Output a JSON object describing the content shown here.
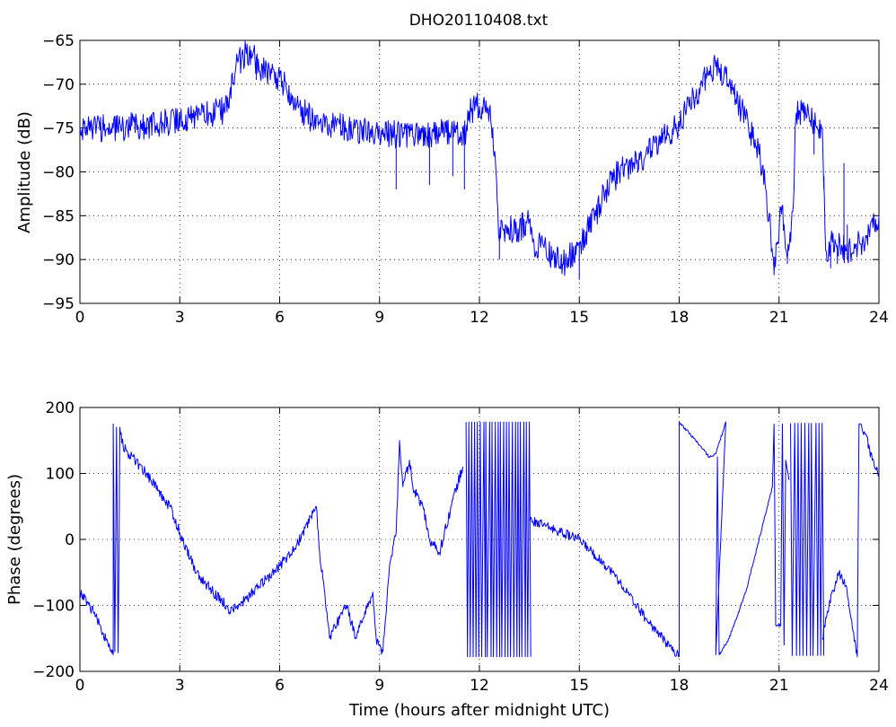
{
  "title": "DHO20110408.txt",
  "colors": {
    "trace": "#0000ff",
    "axes": "#000000",
    "background": "#ffffff"
  },
  "chart_data": [
    {
      "type": "line",
      "xlabel": "",
      "ylabel": "Amplitude (dB)",
      "xlim": [
        0,
        24
      ],
      "ylim": [
        -95,
        -65
      ],
      "xticks": [
        0,
        3,
        6,
        9,
        12,
        15,
        18,
        21,
        24
      ],
      "xtick_labels": [
        "0",
        "3",
        "6",
        "9",
        "12",
        "15",
        "18",
        "21",
        "24"
      ],
      "yticks": [
        -65,
        -70,
        -75,
        -80,
        -85,
        -90,
        -95
      ],
      "ytick_labels": [
        "−65",
        "−70",
        "−75",
        "−80",
        "−85",
        "−90",
        "−95"
      ],
      "grid": true,
      "series": [
        {
          "noise": 1.6,
          "points": [
            [
              0,
              -75
            ],
            [
              1,
              -75
            ],
            [
              2.5,
              -74.5
            ],
            [
              3.6,
              -73.5
            ],
            [
              4.3,
              -73
            ],
            [
              4.5,
              -71
            ],
            [
              4.75,
              -67.5
            ],
            [
              5.0,
              -66.5
            ],
            [
              5.2,
              -66.5
            ],
            [
              5.4,
              -68.5
            ],
            [
              5.7,
              -68.5
            ],
            [
              6.0,
              -69.2
            ],
            [
              6.4,
              -71.5
            ],
            [
              6.8,
              -73.5
            ],
            [
              7.2,
              -74.5
            ],
            [
              8.0,
              -75
            ],
            [
              9.0,
              -75.5
            ],
            [
              10.0,
              -76
            ],
            [
              11.0,
              -75.5
            ],
            [
              11.6,
              -75.5
            ],
            [
              11.65,
              -73
            ],
            [
              12.0,
              -72.5
            ],
            [
              12.3,
              -73
            ],
            [
              12.4,
              -75
            ],
            [
              12.5,
              -80
            ],
            [
              12.55,
              -84
            ],
            [
              12.6,
              -88
            ],
            [
              12.65,
              -85.5
            ],
            [
              12.7,
              -86.5
            ],
            [
              13.2,
              -86.5
            ],
            [
              13.5,
              -85.5
            ],
            [
              13.6,
              -88
            ],
            [
              14.0,
              -89
            ],
            [
              14.5,
              -90.5
            ],
            [
              15.0,
              -88.5
            ],
            [
              15.5,
              -85
            ],
            [
              15.8,
              -82
            ],
            [
              16.2,
              -80
            ],
            [
              17.0,
              -78
            ],
            [
              18.0,
              -74.5
            ],
            [
              18.3,
              -72.5
            ],
            [
              18.6,
              -70.5
            ],
            [
              18.9,
              -68.5
            ],
            [
              19.1,
              -68
            ],
            [
              19.5,
              -70
            ],
            [
              20.0,
              -74
            ],
            [
              20.4,
              -78
            ],
            [
              20.6,
              -82
            ],
            [
              20.75,
              -87
            ],
            [
              20.85,
              -91.5
            ],
            [
              20.95,
              -88
            ],
            [
              21.05,
              -84
            ],
            [
              21.15,
              -86
            ],
            [
              21.25,
              -90
            ],
            [
              21.35,
              -88
            ],
            [
              21.45,
              -82
            ],
            [
              21.5,
              -74
            ],
            [
              21.6,
              -73
            ],
            [
              22.0,
              -74
            ],
            [
              22.3,
              -75
            ],
            [
              22.4,
              -89
            ],
            [
              22.6,
              -88
            ],
            [
              23.0,
              -89
            ],
            [
              23.5,
              -88
            ],
            [
              24.0,
              -85
            ]
          ],
          "spikes": [
            [
              5.3,
              -69.5
            ],
            [
              11.55,
              -82
            ],
            [
              12.6,
              -90
            ],
            [
              15.0,
              -92.3
            ],
            [
              20.85,
              -91.8
            ],
            [
              21.25,
              -90.5
            ],
            [
              21.45,
              -81.5
            ],
            [
              21.55,
              -72.5
            ],
            [
              22.05,
              -78
            ],
            [
              22.35,
              -80.5
            ],
            [
              22.55,
              -91
            ],
            [
              22.75,
              -90.5
            ],
            [
              22.95,
              -79
            ],
            [
              23.05,
              -90
            ],
            [
              23.05,
              -86
            ],
            [
              9.5,
              -82
            ],
            [
              10.5,
              -81.5
            ],
            [
              11.2,
              -80.5
            ]
          ]
        }
      ]
    },
    {
      "type": "line",
      "xlabel": "Time (hours after midnight UTC)",
      "ylabel": "Phase (degrees)",
      "xlim": [
        0,
        24
      ],
      "ylim": [
        -200,
        200
      ],
      "xticks": [
        0,
        3,
        6,
        9,
        12,
        15,
        18,
        21,
        24
      ],
      "xtick_labels": [
        "0",
        "3",
        "6",
        "9",
        "12",
        "15",
        "18",
        "21",
        "24"
      ],
      "yticks": [
        200,
        100,
        0,
        -100,
        -200
      ],
      "ytick_labels": [
        "200",
        "100",
        "0",
        "−100",
        "−200"
      ],
      "grid": true,
      "series": [
        {
          "noise": 8,
          "points": [
            [
              0,
              -80
            ],
            [
              0.3,
              -100
            ],
            [
              0.6,
              -130
            ],
            [
              0.9,
              -165
            ],
            [
              1.0,
              -175
            ],
            [
              1.0,
              175
            ],
            [
              1.05,
              -170
            ],
            [
              1.1,
              170
            ],
            [
              1.15,
              -172
            ],
            [
              1.2,
              170
            ],
            [
              1.3,
              140
            ],
            [
              2.0,
              100
            ],
            [
              2.7,
              50
            ],
            [
              3.0,
              10
            ],
            [
              3.5,
              -50
            ],
            [
              4.0,
              -80
            ],
            [
              4.4,
              -100
            ],
            [
              4.5,
              -110
            ],
            [
              5.0,
              -90
            ],
            [
              6.0,
              -40
            ],
            [
              6.5,
              -10
            ],
            [
              7.0,
              40
            ],
            [
              7.1,
              50
            ],
            [
              7.2,
              -20
            ],
            [
              7.3,
              -60
            ],
            [
              7.5,
              -150
            ],
            [
              7.8,
              -120
            ],
            [
              8.0,
              -100
            ],
            [
              8.3,
              -150
            ],
            [
              8.5,
              -120
            ],
            [
              8.8,
              -80
            ],
            [
              8.9,
              -150
            ],
            [
              9.1,
              -170
            ],
            [
              9.3,
              -40
            ],
            [
              9.5,
              10
            ],
            [
              9.6,
              150
            ],
            [
              9.7,
              80
            ],
            [
              9.9,
              120
            ],
            [
              10.0,
              80
            ],
            [
              10.3,
              50
            ],
            [
              10.5,
              0
            ],
            [
              10.8,
              -20
            ],
            [
              11.2,
              60
            ],
            [
              11.5,
              110
            ]
          ]
        },
        {
          "wraps": {
            "from": 11.6,
            "to": 13.5,
            "count": 22,
            "high": 178,
            "low": -178
          }
        },
        {
          "noise": 7,
          "points": [
            [
              13.5,
              30
            ],
            [
              14.0,
              20
            ],
            [
              15.0,
              0
            ],
            [
              16.0,
              -50
            ],
            [
              17.0,
              -120
            ],
            [
              17.5,
              -150
            ],
            [
              18.0,
              -178
            ]
          ]
        },
        {
          "noise": 2,
          "points": [
            [
              18.0,
              -178
            ],
            [
              18.0,
              178
            ],
            [
              18.5,
              150
            ],
            [
              18.9,
              125
            ],
            [
              19.1,
              130
            ],
            [
              19.4,
              178
            ],
            [
              19.1,
              -175
            ],
            [
              19.15,
              125
            ],
            [
              19.2,
              -175
            ],
            [
              19.5,
              -150
            ],
            [
              20.0,
              -80
            ],
            [
              20.5,
              20
            ],
            [
              20.8,
              80
            ],
            [
              20.85,
              175
            ],
            [
              20.9,
              -130
            ],
            [
              21.05,
              -130
            ],
            [
              21.1,
              175
            ],
            [
              21.15,
              -160
            ],
            [
              21.2,
              120
            ],
            [
              21.3,
              90
            ]
          ]
        },
        {
          "wraps": {
            "from": 21.35,
            "to": 22.3,
            "count": 9,
            "high": 176,
            "low": -176
          }
        },
        {
          "noise": 7,
          "points": [
            [
              22.3,
              -150
            ],
            [
              22.5,
              -100
            ],
            [
              22.8,
              -50
            ],
            [
              23.0,
              -70
            ],
            [
              23.3,
              -160
            ],
            [
              23.35,
              -178
            ],
            [
              23.4,
              175
            ],
            [
              23.6,
              160
            ],
            [
              23.8,
              120
            ],
            [
              24.0,
              100
            ]
          ]
        }
      ]
    }
  ]
}
